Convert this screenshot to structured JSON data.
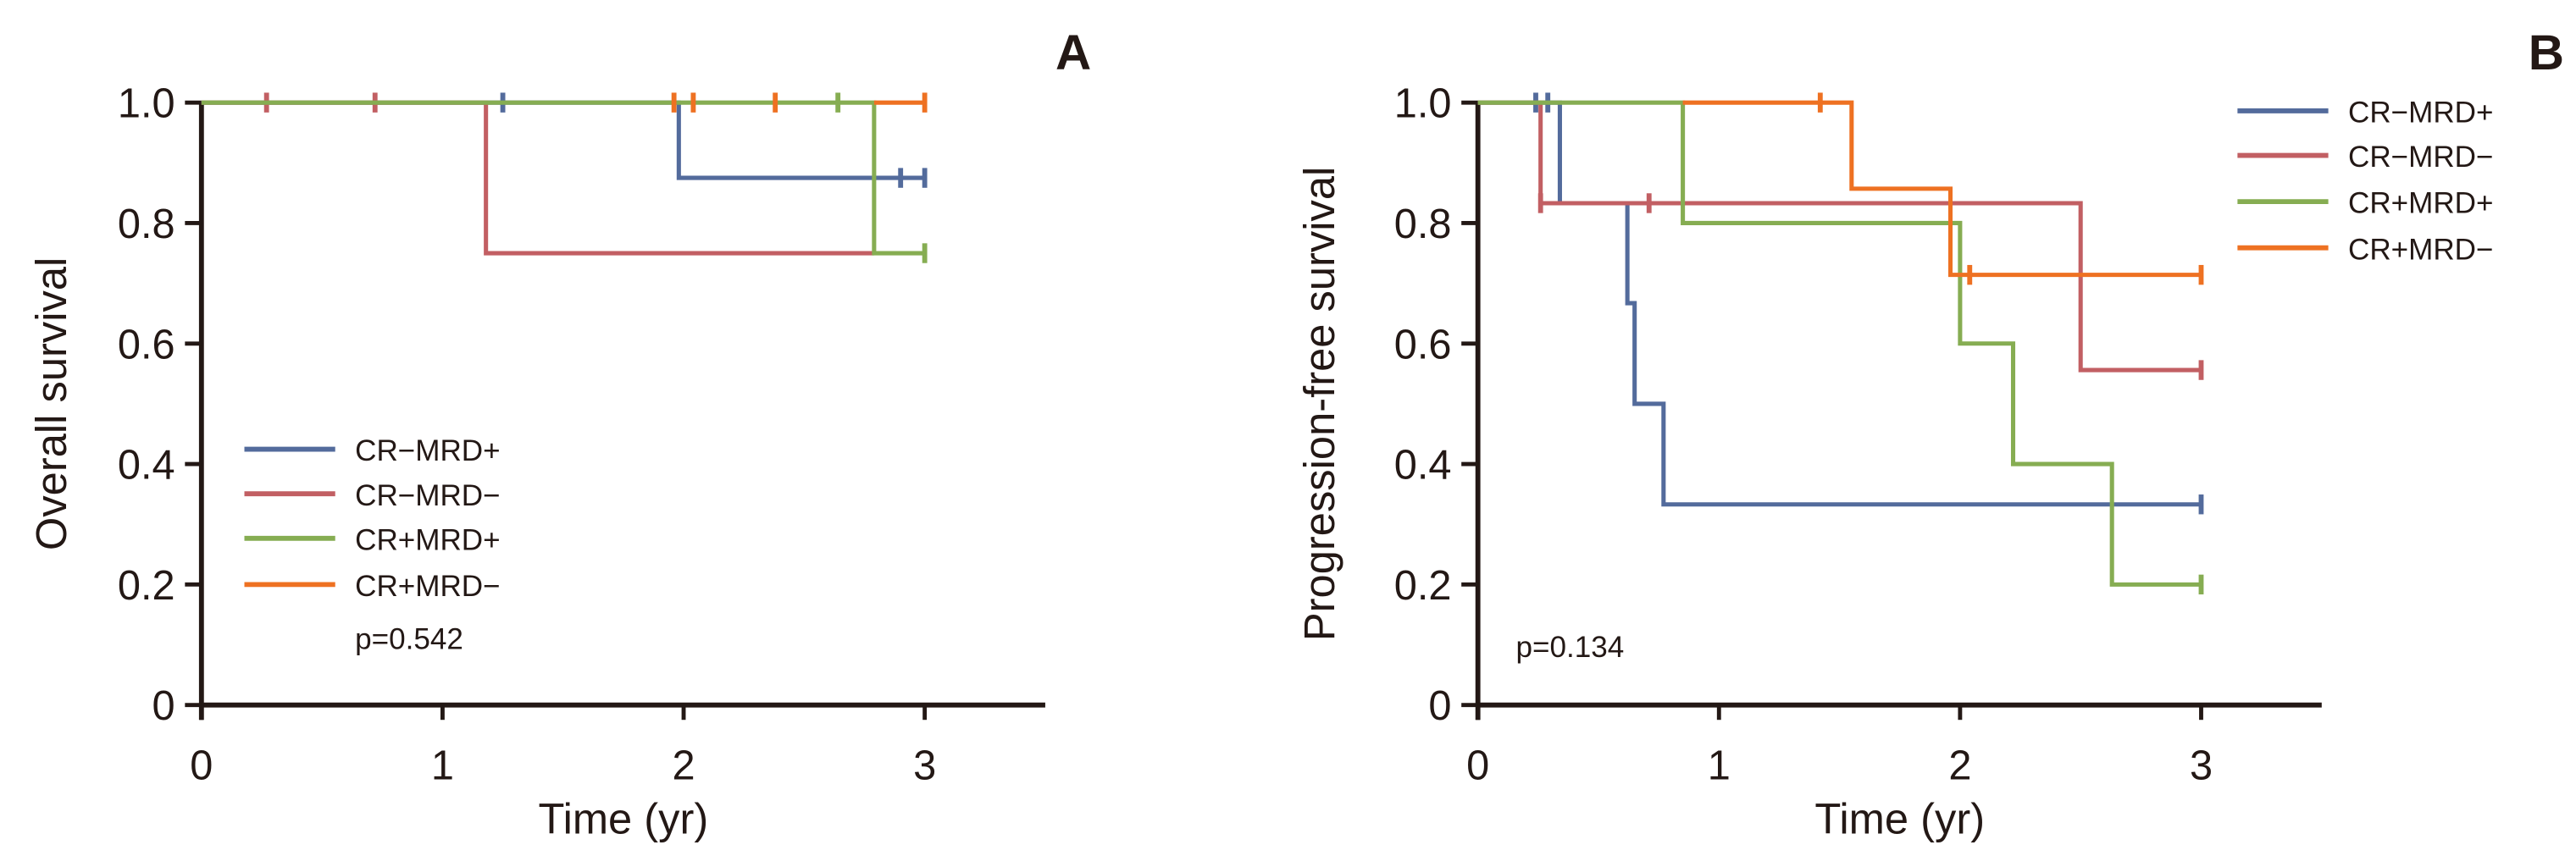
{
  "colors": {
    "CR-MRD+": "#536b9c",
    "CR-MRD-": "#c25f63",
    "CR+MRD+": "#86ad52",
    "CR+MRD-": "#ee7122",
    "axis": "#231815"
  },
  "chart_data": [
    {
      "type": "line",
      "subtype": "kaplan-meier",
      "panel_label": "A",
      "xlabel": "Time (yr)",
      "ylabel": "Overall survival",
      "xlim": [
        0,
        3.5
      ],
      "ylim": [
        0,
        1.0
      ],
      "x_ticks": [
        "0",
        "1",
        "2",
        "3"
      ],
      "x_tick_values": [
        0,
        1,
        2,
        3
      ],
      "y_ticks": [
        "0",
        "0.2",
        "0.4",
        "0.6",
        "0.8",
        "1.0"
      ],
      "y_tick_values": [
        0,
        0.2,
        0.4,
        0.6,
        0.8,
        1.0
      ],
      "legend_position": "bottom-left",
      "annotation": "p=0.542",
      "series": [
        {
          "name": "CR−MRD+",
          "key": "CR-MRD+",
          "steps": [
            [
              0,
              1.0
            ],
            [
              1.98,
              0.875
            ]
          ],
          "end": 3.0,
          "censored": [
            [
              1.25,
              1.0
            ],
            [
              2.9,
              0.875
            ],
            [
              3.0,
              0.875
            ]
          ]
        },
        {
          "name": "CR−MRD−",
          "key": "CR-MRD-",
          "steps": [
            [
              0,
              1.0
            ],
            [
              1.18,
              0.75
            ]
          ],
          "end": 2.79,
          "censored": [
            [
              0.27,
              1.0
            ],
            [
              0.72,
              1.0
            ]
          ]
        },
        {
          "name": "CR+MRD+",
          "key": "CR+MRD+",
          "steps": [
            [
              0,
              1.0
            ],
            [
              2.79,
              0.75
            ]
          ],
          "end": 3.0,
          "censored": [
            [
              2.64,
              1.0
            ],
            [
              3.0,
              0.75
            ]
          ]
        },
        {
          "name": "CR+MRD−",
          "key": "CR+MRD-",
          "steps": [
            [
              0,
              1.0
            ]
          ],
          "end": 3.0,
          "censored": [
            [
              1.96,
              1.0
            ],
            [
              2.04,
              1.0
            ],
            [
              2.38,
              1.0
            ],
            [
              3.0,
              1.0
            ]
          ],
          "draw_from": 2.79
        }
      ]
    },
    {
      "type": "line",
      "subtype": "kaplan-meier",
      "panel_label": "B",
      "xlabel": "Time (yr)",
      "ylabel": "Progression-free survival",
      "xlim": [
        0,
        3.5
      ],
      "ylim": [
        0,
        1.0
      ],
      "x_ticks": [
        "0",
        "1",
        "2",
        "3"
      ],
      "x_tick_values": [
        0,
        1,
        2,
        3
      ],
      "y_ticks": [
        "0",
        "0.2",
        "0.4",
        "0.6",
        "0.8",
        "1.0"
      ],
      "y_tick_values": [
        0,
        0.2,
        0.4,
        0.6,
        0.8,
        1.0
      ],
      "legend_position": "top-right",
      "annotation": "p=0.134",
      "series": [
        {
          "name": "CR−MRD+",
          "key": "CR-MRD+",
          "steps": [
            [
              0,
              1.0
            ],
            [
              0.34,
              0.833
            ],
            [
              0.62,
              0.667
            ],
            [
              0.65,
              0.5
            ],
            [
              0.77,
              0.333
            ]
          ],
          "end": 3.0,
          "censored": [
            [
              0.24,
              1.0
            ],
            [
              0.29,
              1.0
            ],
            [
              3.0,
              0.333
            ]
          ]
        },
        {
          "name": "CR−MRD−",
          "key": "CR-MRD-",
          "steps": [
            [
              0,
              1.0
            ],
            [
              0.26,
              0.833
            ],
            [
              2.5,
              0.556
            ]
          ],
          "end": 3.0,
          "censored": [
            [
              0.26,
              0.833
            ],
            [
              0.71,
              0.833
            ],
            [
              3.0,
              0.556
            ]
          ]
        },
        {
          "name": "CR+MRD+",
          "key": "CR+MRD+",
          "steps": [
            [
              0,
              1.0
            ],
            [
              0.85,
              0.8
            ],
            [
              2.0,
              0.6
            ],
            [
              2.22,
              0.4
            ],
            [
              2.63,
              0.2
            ]
          ],
          "end": 3.0,
          "censored": [
            [
              3.0,
              0.2
            ]
          ]
        },
        {
          "name": "CR+MRD−",
          "key": "CR+MRD-",
          "steps": [
            [
              0,
              1.0
            ],
            [
              1.55,
              0.857
            ],
            [
              1.96,
              0.714
            ]
          ],
          "end": 3.0,
          "censored": [
            [
              1.42,
              1.0
            ],
            [
              2.04,
              0.714
            ],
            [
              3.0,
              0.714
            ]
          ],
          "draw_from": 0.85
        }
      ]
    }
  ]
}
